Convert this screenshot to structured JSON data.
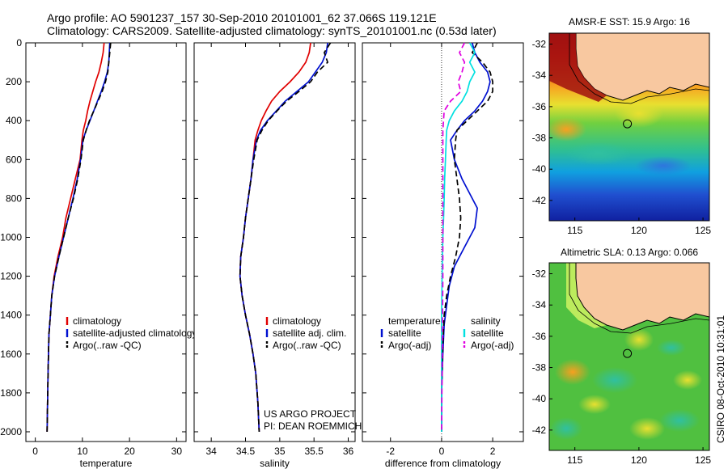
{
  "header": {
    "line1": "Argo profile: AO 5901237_157 30-Sep-2010 20101001_62 37.066S 119.121E",
    "line2": "Climatology: CARS2009. Satellite-adjusted climatology: synTS_20101001.nc (0.53d later)"
  },
  "credits": {
    "project": "US ARGO PROJECT",
    "pi": "PI: DEAN ROEMMICH",
    "stamp": "CSIRO 08-Oct-2010 10:31:01"
  },
  "colors": {
    "climatology": "#e00000",
    "satellite": "#0010d0",
    "argo": "#000000",
    "satellite_salinity": "#00e0e0",
    "argo_salinity": "#e000e0",
    "land": "#f8c8a0"
  },
  "chart_data": [
    {
      "id": "temperature",
      "type": "line",
      "xlabel": "temperature",
      "ylabel": "",
      "xlim": [
        -2,
        32
      ],
      "ylim": [
        2050,
        0
      ],
      "xticks": [
        0,
        10,
        20,
        30
      ],
      "yticks": [
        0,
        200,
        400,
        600,
        800,
        1000,
        1200,
        1400,
        1600,
        1800,
        2000
      ],
      "series": [
        {
          "name": "climatology",
          "color": "#e00000",
          "style": "solid",
          "x": [
            14.6,
            14.4,
            14.0,
            13.5,
            12.8,
            12.2,
            11.6,
            11.1,
            10.7,
            10.2,
            9.9,
            9.5,
            8.5,
            7.5,
            6.5,
            5.8,
            4.8,
            4.0,
            3.5,
            3.2,
            2.9,
            2.7,
            2.6,
            2.5
          ],
          "y": [
            0,
            50,
            100,
            150,
            200,
            250,
            300,
            350,
            400,
            450,
            500,
            600,
            700,
            800,
            900,
            1000,
            1100,
            1200,
            1300,
            1400,
            1500,
            1700,
            1850,
            2000
          ]
        },
        {
          "name": "satellite-adjusted climatology",
          "color": "#0010d0",
          "style": "solid",
          "x": [
            15.8,
            15.7,
            15.6,
            15.3,
            14.7,
            14.0,
            13.2,
            12.4,
            11.6,
            10.8,
            10.1,
            9.6,
            8.9,
            8.0,
            7.0,
            6.0,
            5.0,
            4.1,
            3.5,
            3.2,
            2.9,
            2.7,
            2.6,
            2.5
          ],
          "y": [
            0,
            50,
            100,
            150,
            200,
            250,
            300,
            350,
            400,
            450,
            500,
            600,
            700,
            800,
            900,
            1000,
            1100,
            1200,
            1300,
            1400,
            1500,
            1700,
            1850,
            2000
          ]
        },
        {
          "name": "Argo(..raw -QC)",
          "color": "#000000",
          "style": "dashed",
          "x": [
            16.0,
            15.8,
            15.6,
            15.4,
            14.9,
            14.2,
            13.3,
            12.4,
            11.5,
            10.8,
            10.2,
            9.7,
            9.0,
            8.1,
            7.0,
            6.0,
            5.0,
            4.1,
            3.5,
            3.2,
            2.9,
            2.7,
            2.6,
            2.5
          ],
          "y": [
            0,
            50,
            100,
            150,
            200,
            250,
            300,
            350,
            400,
            450,
            500,
            600,
            700,
            800,
            900,
            1000,
            1100,
            1200,
            1300,
            1400,
            1500,
            1700,
            1850,
            2000
          ]
        }
      ],
      "legend": [
        "climatology",
        "satellite-adjusted climatology",
        "Argo(..raw -QC)"
      ]
    },
    {
      "id": "salinity",
      "type": "line",
      "xlabel": "salinity",
      "ylabel": "",
      "xlim": [
        33.75,
        36.1
      ],
      "ylim": [
        2050,
        0
      ],
      "xticks": [
        34,
        34.5,
        35,
        35.5,
        36
      ],
      "series": [
        {
          "name": "climatology",
          "color": "#e00000",
          "style": "solid",
          "x": [
            35.45,
            35.43,
            35.38,
            35.28,
            35.15,
            35.0,
            34.88,
            34.8,
            34.73,
            34.68,
            34.64,
            34.61,
            34.58,
            34.54,
            34.5,
            34.47,
            34.43,
            34.42,
            34.45,
            34.5,
            34.56,
            34.61,
            34.65,
            34.68,
            34.7
          ],
          "y": [
            0,
            50,
            100,
            150,
            200,
            250,
            300,
            350,
            400,
            450,
            500,
            600,
            700,
            800,
            900,
            1000,
            1100,
            1200,
            1300,
            1400,
            1500,
            1600,
            1700,
            1850,
            2000
          ]
        },
        {
          "name": "satellite adj. clim.",
          "color": "#0010d0",
          "style": "solid",
          "x": [
            35.7,
            35.68,
            35.62,
            35.52,
            35.42,
            35.25,
            35.08,
            34.95,
            34.82,
            34.72,
            34.66,
            34.61,
            34.58,
            34.54,
            34.5,
            34.47,
            34.43,
            34.42,
            34.45,
            34.5,
            34.56,
            34.61,
            34.65,
            34.68,
            34.7
          ],
          "y": [
            0,
            50,
            100,
            150,
            200,
            250,
            300,
            350,
            400,
            450,
            500,
            600,
            700,
            800,
            900,
            1000,
            1100,
            1200,
            1300,
            1400,
            1500,
            1600,
            1700,
            1850,
            2000
          ]
        },
        {
          "name": "Argo(..raw -QC)",
          "color": "#000000",
          "style": "dashed",
          "x": [
            35.74,
            35.65,
            35.7,
            35.55,
            35.45,
            35.28,
            35.1,
            34.96,
            34.83,
            34.74,
            34.67,
            34.62,
            34.58,
            34.54,
            34.5,
            34.47,
            34.43,
            34.42,
            34.45,
            34.5,
            34.56,
            34.61,
            34.65,
            34.68,
            34.7
          ],
          "y": [
            0,
            50,
            100,
            150,
            200,
            250,
            300,
            350,
            400,
            450,
            500,
            600,
            700,
            800,
            900,
            1000,
            1100,
            1200,
            1300,
            1400,
            1500,
            1600,
            1700,
            1850,
            2000
          ]
        }
      ],
      "legend": [
        "climatology",
        "satellite adj. clim.",
        "Argo(..raw -QC)"
      ]
    },
    {
      "id": "difference",
      "type": "line",
      "xlabel": "difference from climatology",
      "ylabel": "",
      "xlim": [
        -3.1,
        3.2
      ],
      "ylim": [
        2050,
        0
      ],
      "xticks": [
        -2,
        0,
        2
      ],
      "zero_line": true,
      "series": [
        {
          "name": "temperature satellite",
          "color": "#0010d0",
          "style": "solid",
          "x": [
            1.2,
            1.3,
            1.5,
            1.8,
            1.9,
            1.8,
            1.6,
            1.3,
            0.9,
            0.6,
            0.35,
            0.5,
            0.8,
            1.2,
            1.4,
            1.3,
            0.9,
            0.5,
            0.3,
            0.2,
            0.1,
            0.05,
            0.0,
            0.0
          ],
          "y": [
            0,
            50,
            100,
            150,
            200,
            250,
            300,
            350,
            400,
            450,
            500,
            600,
            700,
            800,
            850,
            950,
            1050,
            1150,
            1250,
            1350,
            1450,
            1600,
            1800,
            2000
          ]
        },
        {
          "name": "temperature Argo(-adj)",
          "color": "#000000",
          "style": "dashed",
          "x": [
            1.4,
            1.2,
            1.6,
            1.9,
            2.0,
            2.0,
            1.8,
            1.4,
            1.0,
            0.6,
            0.55,
            0.5,
            0.6,
            0.7,
            0.75,
            0.7,
            0.55,
            0.35,
            0.2,
            0.1,
            0.05,
            0.0,
            0.0
          ],
          "y": [
            0,
            50,
            100,
            150,
            200,
            250,
            300,
            350,
            400,
            450,
            500,
            600,
            700,
            800,
            900,
            1000,
            1100,
            1200,
            1300,
            1400,
            1550,
            1800,
            2000
          ]
        },
        {
          "name": "salinity satellite",
          "color": "#00e0e0",
          "style": "solid",
          "x": [
            1.1,
            1.3,
            1.1,
            1.3,
            1.1,
            1.0,
            0.8,
            0.5,
            0.3,
            0.2,
            0.18,
            0.15,
            0.12,
            0.1,
            0.08,
            0.05,
            0.03,
            0.0,
            0.0
          ],
          "y": [
            0,
            50,
            100,
            150,
            200,
            250,
            300,
            350,
            400,
            450,
            500,
            600,
            700,
            800,
            900,
            1000,
            1100,
            1400,
            2000
          ]
        },
        {
          "name": "salinity Argo(-adj)",
          "color": "#e000e0",
          "style": "dashed",
          "x": [
            0.9,
            0.7,
            0.9,
            0.8,
            0.65,
            0.75,
            0.35,
            0.1,
            0.05,
            0.05,
            0.05,
            0.05,
            0.05,
            0.05,
            0.03,
            0.0
          ],
          "y": [
            0,
            50,
            100,
            150,
            200,
            250,
            300,
            350,
            450,
            550,
            700,
            850,
            1000,
            1200,
            1500,
            2000
          ]
        }
      ],
      "legend_header": [
        "temperature",
        "salinity"
      ],
      "legend": [
        "satellite",
        "Argo(-adj)",
        "satellite",
        "Argo(-adj)"
      ]
    },
    {
      "id": "sst_map",
      "type": "heatmap",
      "title": "AMSR-E SST: 15.9 Argo: 16",
      "xlim": [
        113,
        125.5
      ],
      "ylim": [
        -43.3,
        -31.3
      ],
      "xticks": [
        115,
        120,
        125
      ],
      "yticks": [
        -32,
        -34,
        -36,
        -38,
        -40,
        -42
      ],
      "marker": [
        119.1,
        -37.1
      ]
    },
    {
      "id": "sla_map",
      "type": "heatmap",
      "title": "Altimetric SLA: 0.13 Argo: 0.066",
      "xlim": [
        113,
        125.5
      ],
      "ylim": [
        -43.3,
        -31.3
      ],
      "xticks": [
        115,
        120,
        125
      ],
      "yticks": [
        -32,
        -34,
        -36,
        -38,
        -40,
        -42
      ],
      "marker": [
        119.1,
        -37.1
      ]
    }
  ]
}
